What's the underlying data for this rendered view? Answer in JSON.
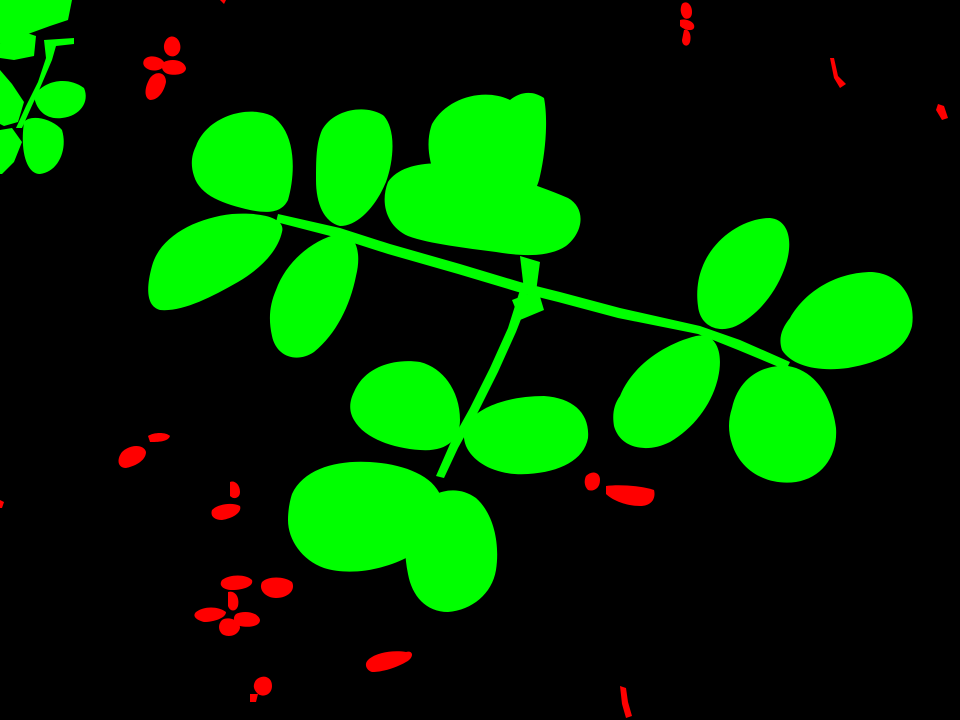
{
  "image": {
    "kind": "segmentation-mask",
    "background_color": "#000000",
    "classes": [
      {
        "id": "crop",
        "color": "#00ff00"
      },
      {
        "id": "weed",
        "color": "#ff0000"
      }
    ]
  }
}
